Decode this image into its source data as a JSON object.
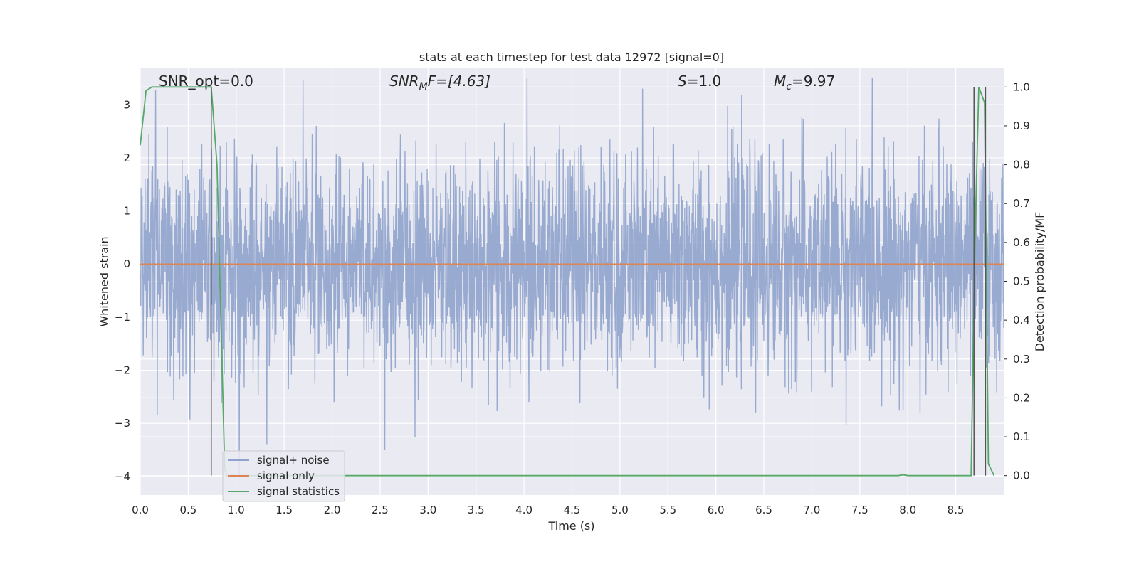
{
  "chart_data": {
    "type": "line",
    "title": "stats at each timestep for test data 12972 [signal=0]",
    "xlabel": "Time (s)",
    "ylabel": "Whitened strain",
    "y2label": "Detection probability/MF",
    "xlim": [
      0.0,
      9.0
    ],
    "ylim": [
      -4.35,
      3.7
    ],
    "y2lim": [
      -0.05,
      1.05
    ],
    "xticks": [
      "0.0",
      "0.5",
      "1.0",
      "1.5",
      "2.0",
      "2.5",
      "3.0",
      "3.5",
      "4.0",
      "4.5",
      "5.0",
      "5.5",
      "6.0",
      "6.5",
      "7.0",
      "7.5",
      "8.0",
      "8.5"
    ],
    "yticks": [
      "3",
      "2",
      "1",
      "0",
      "−1",
      "−2",
      "−3",
      "−4"
    ],
    "y2ticks": [
      "1.0",
      "0.9",
      "0.8",
      "0.7",
      "0.6",
      "0.5",
      "0.4",
      "0.3",
      "0.2",
      "0.1",
      "0.0"
    ],
    "grid": true,
    "legend_position": "lower-left",
    "annotations": {
      "snr_opt": "SNR_opt=0.0",
      "snr_mf_main": "SNR",
      "snr_mf_sub": "M",
      "snr_mf_rest": "F=[4.63]",
      "s_main": "S",
      "s_rest": "=1.0",
      "mc_main": "M",
      "mc_sub": "c",
      "mc_rest": "=9.97"
    },
    "series": [
      {
        "name": "signal+ noise",
        "color": "#8fa3cc",
        "axis": "left",
        "description_envelope_max": 3.5,
        "description_envelope_min": -4.0,
        "noise_std": 1.0
      },
      {
        "name": "signal only",
        "color": "#dd8452",
        "axis": "left",
        "x": [
          0.0,
          9.0
        ],
        "y": [
          0.0,
          0.0
        ]
      },
      {
        "name": "signal statistics",
        "color": "#55a868",
        "axis": "right",
        "x": [
          0.0,
          0.06,
          0.12,
          0.2,
          0.4,
          0.6,
          0.7,
          0.74,
          0.8,
          0.88,
          0.9,
          1.0,
          2.0,
          3.0,
          4.0,
          5.0,
          6.0,
          7.0,
          7.9,
          7.95,
          8.0,
          8.5,
          8.6,
          8.66,
          8.7,
          8.74,
          8.8,
          8.84,
          8.9
        ],
        "y": [
          0.85,
          0.99,
          1.0,
          1.0,
          1.0,
          1.0,
          1.0,
          1.0,
          0.8,
          0.02,
          0.0,
          0.0,
          0.0,
          0.0,
          0.0,
          0.0,
          0.0,
          0.0,
          0.0,
          0.002,
          0.0,
          0.0,
          0.0,
          0.0,
          0.6,
          1.0,
          0.96,
          0.03,
          0.0
        ]
      }
    ],
    "vertical_markers": [
      0.74,
      8.69,
      8.81
    ]
  }
}
